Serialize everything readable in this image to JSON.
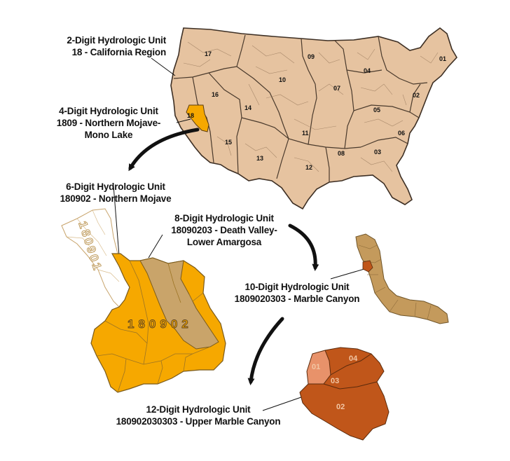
{
  "colors": {
    "us_fill": "#e6c3a0",
    "us_border": "#5a4634",
    "california_region": "#f6a800",
    "northern_mojave": "#f6a800",
    "basin_180901": "#ffffff",
    "death_valley": "#c9a46a",
    "marble_canyon": "#c49a5c",
    "upper_marble_canyon": "#c0561a",
    "huc12_01": "#e8926a",
    "arrow": "#111111"
  },
  "us_map": {
    "region_numbers": [
      "01",
      "02",
      "03",
      "04",
      "05",
      "06",
      "07",
      "08",
      "09",
      "10",
      "11",
      "12",
      "13",
      "14",
      "15",
      "16",
      "17",
      "18"
    ]
  },
  "labels": {
    "huc2": {
      "line1": "2-Digit Hydrologic Unit",
      "line2": "18 - California Region"
    },
    "huc4": {
      "line1": "4-Digit Hydrologic Unit",
      "line2": "1809 - Northern Mojave-",
      "line3": "Mono Lake"
    },
    "huc6": {
      "line1": "6-Digit Hydrologic Unit",
      "line2": "180902 - Northern Mojave"
    },
    "huc8": {
      "line1": "8-Digit Hydrologic Unit",
      "line2": "18090203 - Death Valley-",
      "line3": "Lower Amargosa"
    },
    "huc10": {
      "line1": "10-Digit Hydrologic Unit",
      "line2": "1809020303 - Marble Canyon"
    },
    "huc12": {
      "line1": "12-Digit Hydrologic Unit",
      "line2": "180902030303 - Upper Marble Canyon"
    }
  },
  "basin_labels": {
    "code_180901": "180901",
    "code_180902": "180902"
  },
  "huc12_sub_labels": [
    "01",
    "02",
    "03",
    "04"
  ]
}
